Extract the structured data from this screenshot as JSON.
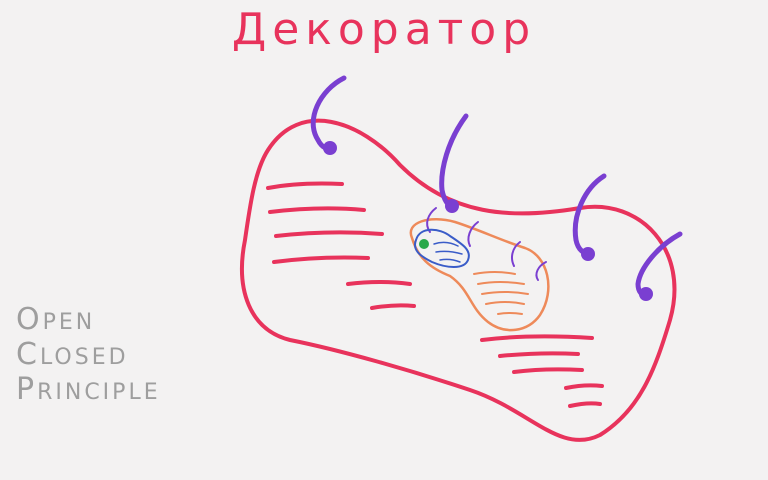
{
  "title": "Декоратор",
  "principle": {
    "line1": {
      "initial": "O",
      "rest": "PEN"
    },
    "line2": {
      "initial": "C",
      "rest": "LOSED"
    },
    "line3": {
      "initial": "P",
      "rest": "RINCIPLE"
    }
  },
  "colors": {
    "background": "#f3f2f2",
    "outer_blob": "#e8335c",
    "hooks": "#7a3fd1",
    "inner_blob": "#ee8a5a",
    "core_blob": "#3a5cc8",
    "core_dot": "#2aa84a",
    "principle_text": "#9e9e9e"
  }
}
